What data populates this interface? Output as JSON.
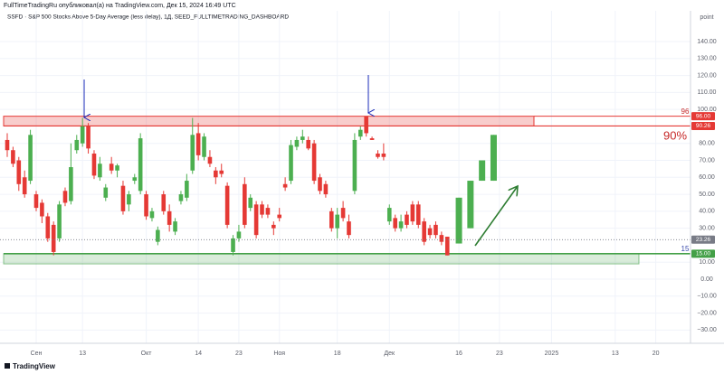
{
  "header": {
    "publisher": "FullTimeTradingRu опубликовал(а) на TradingView.com, Дек 15, 2024 16:49 UTC",
    "symbol": "SSFD · S&P 500 Stocks Above 5-Day Average (less delay), 1Д, SEED_FULLTIMETRADING_DASHBOARD"
  },
  "footer": {
    "brand": "TradingView"
  },
  "chart_data": {
    "type": "candlestick",
    "axis_unit": "point",
    "up_color": "#4caf50",
    "down_color": "#e53935",
    "x": [
      0,
      1,
      2,
      3,
      4,
      5,
      6,
      7,
      8,
      9,
      10,
      11,
      12,
      13,
      14,
      15,
      16,
      17,
      18,
      19,
      20,
      21,
      22,
      23,
      24,
      25,
      26,
      27,
      28,
      29,
      30,
      31,
      32,
      33,
      34,
      35,
      36,
      37,
      38,
      39,
      40,
      41,
      42,
      43,
      44,
      45,
      46,
      47,
      48,
      49,
      50,
      51,
      52,
      53,
      54,
      55,
      56,
      57,
      58,
      59,
      60,
      61,
      62,
      63,
      64,
      65,
      66,
      67,
      68,
      69,
      70,
      71,
      72,
      73,
      74,
      75,
      76,
      78,
      80,
      82,
      84
    ],
    "open": [
      82,
      76,
      70,
      60,
      58,
      50,
      45,
      37,
      32,
      24,
      52,
      46,
      76,
      80,
      90,
      74,
      60,
      48,
      68,
      64,
      55,
      44,
      58,
      52,
      50,
      36,
      22,
      50,
      40,
      28,
      46,
      48,
      64,
      86,
      72,
      72,
      64,
      64,
      55,
      16,
      24,
      56,
      42,
      44,
      44,
      42,
      32,
      38,
      56,
      58,
      78,
      82,
      82,
      80,
      60,
      56,
      40,
      30,
      42,
      34,
      52,
      84,
      96,
      83,
      74,
      74,
      34,
      36,
      30,
      38,
      44,
      44,
      34,
      30,
      32,
      26,
      25,
      21,
      30,
      58,
      58
    ],
    "high": [
      86,
      78,
      72,
      64,
      88,
      52,
      47,
      39,
      34,
      46,
      54,
      80,
      85,
      95,
      92,
      76,
      72,
      56,
      72,
      68,
      58,
      52,
      62,
      86,
      52,
      42,
      31,
      52,
      44,
      36,
      52,
      62,
      95,
      92,
      86,
      76,
      66,
      68,
      57,
      26,
      32,
      60,
      50,
      46,
      46,
      44,
      34,
      42,
      60,
      82,
      84,
      88,
      84,
      82,
      62,
      58,
      42,
      42,
      46,
      38,
      86,
      90,
      96,
      84,
      76,
      80,
      44,
      38,
      38,
      40,
      46,
      46,
      36,
      32,
      34,
      28,
      25,
      48,
      58,
      70,
      85
    ],
    "low": [
      72,
      66,
      52,
      48,
      56,
      40,
      33,
      22,
      14,
      22,
      43,
      44,
      74,
      78,
      74,
      59,
      58,
      46,
      62,
      60,
      38,
      40,
      56,
      50,
      35,
      34,
      20,
      38,
      28,
      26,
      44,
      46,
      62,
      70,
      70,
      66,
      56,
      60,
      30,
      14,
      22,
      30,
      40,
      24,
      36,
      36,
      26,
      34,
      52,
      56,
      76,
      80,
      76,
      56,
      50,
      48,
      28,
      24,
      34,
      24,
      50,
      82,
      84,
      82,
      71,
      70,
      32,
      28,
      28,
      30,
      32,
      30,
      20,
      24,
      24,
      20,
      14,
      21,
      30,
      58,
      58
    ],
    "close": [
      76,
      68,
      56,
      50,
      85,
      42,
      37,
      24,
      16,
      44,
      45,
      66,
      82,
      90,
      77,
      61,
      68,
      54,
      64,
      67,
      40,
      50,
      60,
      83,
      37,
      40,
      29,
      40,
      32,
      34,
      50,
      58,
      85,
      73,
      84,
      68,
      60,
      62,
      32,
      24,
      28,
      32,
      48,
      26,
      38,
      38,
      30,
      36,
      54,
      79,
      82,
      84,
      77,
      58,
      52,
      50,
      30,
      38,
      36,
      26,
      82,
      88,
      86,
      82,
      72,
      72,
      42,
      30,
      34,
      32,
      34,
      32,
      22,
      26,
      26,
      22,
      14,
      48,
      58,
      70,
      85
    ],
    "xlim": [
      -1.25,
      118
    ],
    "xticks": [
      {
        "value": 5,
        "label": "Сен"
      },
      13,
      {
        "value": 24,
        "label": "Окт"
      },
      {
        "value": 33,
        "label": "14"
      },
      {
        "value": 40,
        "label": "23"
      },
      {
        "value": 47,
        "label": "Ноя"
      },
      {
        "value": 57,
        "label": "18"
      },
      {
        "value": 66,
        "label": "Дек"
      },
      {
        "value": 78,
        "label": "16"
      },
      {
        "value": 85,
        "label": "23"
      },
      {
        "value": 94,
        "label": "2025"
      },
      {
        "value": 105,
        "label": "13"
      },
      {
        "value": 112,
        "label": "20"
      }
    ],
    "ylim": [
      -37.8,
      158.1
    ],
    "yticks": [
      {
        "value": 140,
        "label": "140.00"
      },
      {
        "value": 130,
        "label": "130.00"
      },
      {
        "value": 120,
        "label": "120.00"
      },
      {
        "value": 110,
        "label": "110.00"
      },
      {
        "value": 100,
        "label": "100.00"
      },
      {
        "value": 80,
        "label": "80.00"
      },
      {
        "value": 70,
        "label": "70.00"
      },
      {
        "value": 60,
        "label": "60.00"
      },
      {
        "value": 50,
        "label": "50.00"
      },
      {
        "value": 40,
        "label": "40.00"
      },
      {
        "value": 30,
        "label": "30.00"
      },
      {
        "value": 10,
        "label": "10.00"
      },
      {
        "value": 0,
        "label": "0.00"
      },
      {
        "value": -10,
        "label": "−10.00"
      },
      {
        "value": -20,
        "label": "−20.00"
      },
      {
        "value": -30,
        "label": "−30.00"
      }
    ],
    "grid": true,
    "resistance_zone": {
      "low": 90.26,
      "high": 96,
      "color": "#e53935"
    },
    "support_zone": {
      "low": 9,
      "high": 15,
      "color": "#43a047"
    },
    "price_markers": [
      {
        "value": 96,
        "label": "96.00",
        "color": "#e53935"
      },
      {
        "value": 90.26,
        "label": "90.26",
        "color": "#e53935"
      },
      {
        "value": 23.26,
        "label": "23.26",
        "color": "#787b86"
      },
      {
        "value": 15,
        "label": "15.00",
        "color": "#43a047"
      }
    ],
    "level_labels": [
      96,
      15
    ],
    "level_label_colors": [
      "#c62828",
      "#3949ab"
    ],
    "annotation": "90%"
  }
}
